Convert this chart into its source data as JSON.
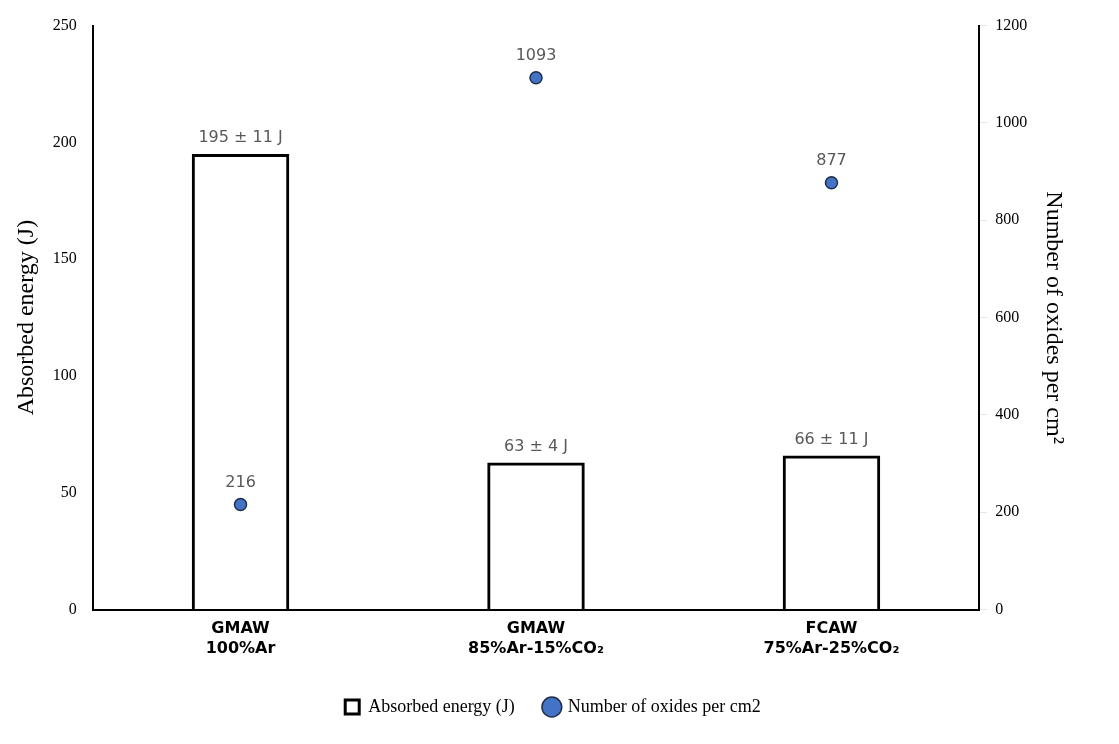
{
  "chart_data": {
    "type": "bar",
    "categories": [
      "GMAW\n100%Ar",
      "GMAW\n85%Ar-15%CO₂",
      "FCAW\n75%Ar-25%CO₂"
    ],
    "ylabel": "Absorbed energy (J)",
    "y2label": "Number of oxides per cm²",
    "ylim": [
      0,
      250
    ],
    "yticks": [
      0,
      50,
      100,
      150,
      200,
      250
    ],
    "y2lim": [
      0,
      1200
    ],
    "y2ticks": [
      0,
      200,
      400,
      600,
      800,
      1000,
      1200
    ],
    "grid": false,
    "legend": "bottom",
    "marker": "circle",
    "series": [
      {
        "name": "Absorbed energy (J)",
        "color": "#000000",
        "values": [
          195,
          63,
          66
        ],
        "value_labels": [
          "195 ± 11 J",
          "63 ± 4 J",
          "66 ± 11 J"
        ]
      },
      {
        "name": "Number of oxides per cm2",
        "type": "scatter",
        "axis": "y2",
        "color": "#4472c4",
        "values": [
          216,
          1093,
          877
        ],
        "value_labels": [
          "216",
          "1093",
          "877"
        ]
      }
    ]
  }
}
